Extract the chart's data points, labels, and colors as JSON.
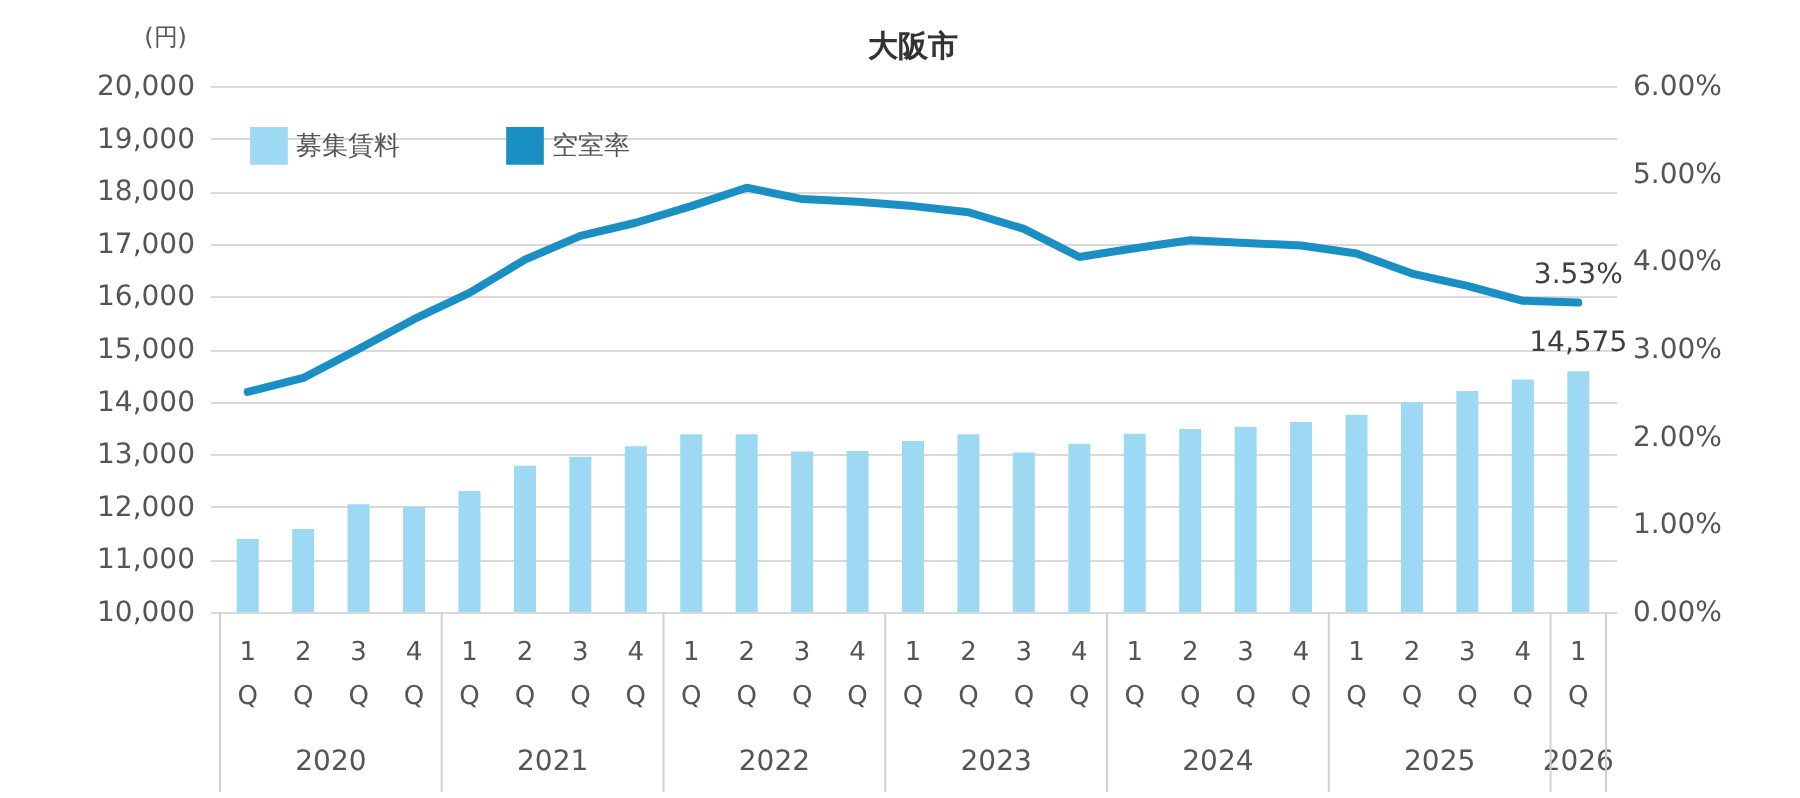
{
  "chart_data": {
    "type": "bar",
    "title": "大阪市",
    "ylabel": "(円)",
    "categories": [
      "1Q",
      "2Q",
      "3Q",
      "4Q",
      "1Q",
      "2Q",
      "3Q",
      "4Q",
      "1Q",
      "2Q",
      "3Q",
      "4Q",
      "1Q",
      "2Q",
      "3Q",
      "4Q",
      "1Q",
      "2Q",
      "3Q",
      "4Q",
      "1Q",
      "2Q",
      "3Q",
      "4Q",
      "1Q"
    ],
    "annotations": [
      "2020",
      "2021",
      "2022",
      "2023",
      "2024",
      "2025",
      "2026"
    ],
    "series": [
      {
        "name": "募集賃料",
        "color": "#9dd9f3",
        "values": [
          11390,
          11580,
          12050,
          12000,
          12300,
          12780,
          12950,
          13150,
          13380,
          13380,
          13050,
          13060,
          13250,
          13380,
          13030,
          13200,
          13390,
          13480,
          13520,
          13610,
          13750,
          13990,
          14200,
          14420,
          14575
        ],
        "value_labels": [
          null,
          null,
          null,
          null,
          null,
          null,
          null,
          null,
          null,
          null,
          null,
          null,
          null,
          null,
          null,
          null,
          null,
          null,
          null,
          null,
          null,
          null,
          null,
          null,
          "14,575"
        ]
      },
      {
        "name": "空室率",
        "type": "line",
        "axis": "y2",
        "color": "#1a8fc4",
        "values": [
          2.51,
          2.67,
          3.0,
          3.34,
          3.64,
          4.02,
          4.29,
          4.44,
          4.63,
          4.84,
          4.71,
          4.68,
          4.63,
          4.56,
          4.37,
          4.05,
          4.15,
          4.24,
          4.21,
          4.18,
          4.09,
          3.86,
          3.72,
          3.55,
          3.53
        ],
        "value_labels": [
          null,
          null,
          null,
          null,
          null,
          null,
          null,
          null,
          null,
          null,
          null,
          null,
          null,
          null,
          null,
          null,
          null,
          null,
          null,
          null,
          null,
          null,
          null,
          null,
          "3.53%"
        ]
      }
    ],
    "ylim": [
      10000,
      20000
    ],
    "yticks": [
      {
        "value": 10000,
        "label": "10,000"
      },
      {
        "value": 11000,
        "label": "11,000"
      },
      {
        "value": 12000,
        "label": "12,000"
      },
      {
        "value": 13000,
        "label": "13,000"
      },
      {
        "value": 14000,
        "label": "14,000"
      },
      {
        "value": 15000,
        "label": "15,000"
      },
      {
        "value": 16000,
        "label": "16,000"
      },
      {
        "value": 17000,
        "label": "17,000"
      },
      {
        "value": 18000,
        "label": "18,000"
      },
      {
        "value": 19000,
        "label": "19,000"
      },
      {
        "value": 20000,
        "label": "20,000"
      }
    ],
    "y2lim": [
      0,
      6
    ],
    "y2ticks": [
      {
        "value": 0,
        "label": "0.00%"
      },
      {
        "value": 1,
        "label": "1.00%"
      },
      {
        "value": 2,
        "label": "2.00%"
      },
      {
        "value": 3,
        "label": "3.00%"
      },
      {
        "value": 4,
        "label": "4.00%"
      },
      {
        "value": 5,
        "label": "5.00%"
      },
      {
        "value": 6,
        "label": "6.00%"
      }
    ],
    "grid": "y",
    "legend": "top left",
    "marker": "none",
    "line_style": "solid"
  }
}
